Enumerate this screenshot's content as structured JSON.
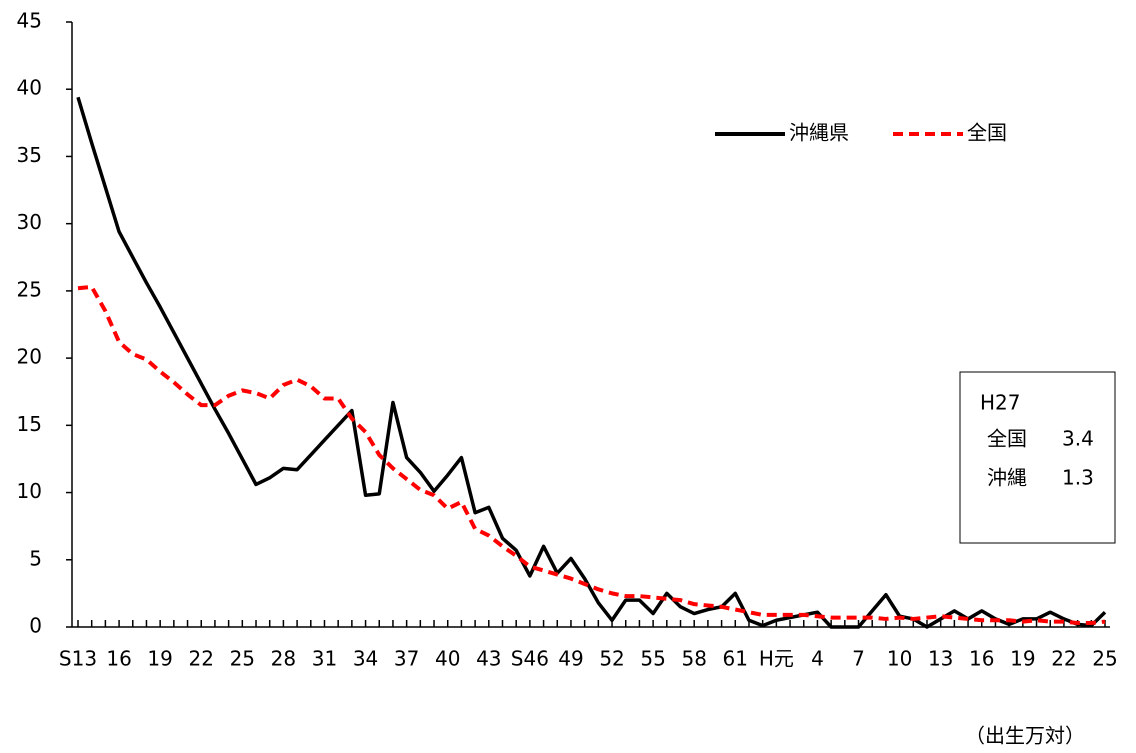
{
  "chart_data": {
    "type": "line",
    "categories": [
      "S13",
      null,
      null,
      "16",
      null,
      null,
      "19",
      null,
      null,
      "22",
      null,
      null,
      "25",
      null,
      null,
      "28",
      null,
      null,
      "31",
      null,
      null,
      "34",
      null,
      null,
      "37",
      null,
      null,
      "40",
      null,
      null,
      "43",
      null,
      null,
      "S46",
      null,
      null,
      "49",
      null,
      null,
      "52",
      null,
      null,
      "55",
      null,
      null,
      "58",
      null,
      null,
      "61",
      null,
      null,
      "H元",
      null,
      null,
      "4",
      null,
      null,
      "7",
      null,
      null,
      "10",
      null,
      null,
      "13",
      null,
      null,
      "16",
      null,
      null,
      "19",
      null,
      null,
      "22",
      null,
      null,
      "25"
    ],
    "series": [
      {
        "name": "沖縄県",
        "color": "#000000",
        "dash": false,
        "values": [
          39.4,
          36,
          32.7,
          29.4,
          27.5,
          25.6,
          23.8,
          21.9,
          20.0,
          18.1,
          16.2,
          14.4,
          12.5,
          10.6,
          11.1,
          11.8,
          11.7,
          12.8,
          13.9,
          15.0,
          16.1,
          9.8,
          9.9,
          16.7,
          12.6,
          11.5,
          10.1,
          11.3,
          12.6,
          8.5,
          8.9,
          6.6,
          5.7,
          3.8,
          6.0,
          4.0,
          5.1,
          3.6,
          1.8,
          0.5,
          2.0,
          2.0,
          1.0,
          2.5,
          1.5,
          1.0,
          1.3,
          1.5,
          2.5,
          0.5,
          0.1,
          0.5,
          0.7,
          0.9,
          1.1,
          0.0,
          0,
          0,
          1.2,
          2.4,
          0.8,
          0.6,
          0.0,
          0.6,
          1.2,
          0.6,
          1.2,
          0.6,
          0.2,
          0.6,
          0.6,
          1.1,
          0.6,
          0.2,
          0.1,
          1.1
        ]
      },
      {
        "name": "全国",
        "color": "#ff0000",
        "dash": true,
        "values": [
          25.2,
          25.3,
          23.5,
          21.2,
          20.3,
          19.9,
          19.0,
          18.2,
          17.3,
          16.5,
          16.5,
          17.2,
          17.6,
          17.4,
          17.0,
          18.0,
          18.4,
          17.9,
          17.0,
          17.0,
          15.5,
          14.5,
          12.8,
          11.8,
          11.0,
          10.2,
          9.8,
          8.8,
          9.3,
          7.3,
          6.8,
          6.0,
          5.3,
          4.5,
          4.2,
          3.9,
          3.6,
          3.2,
          2.8,
          2.5,
          2.3,
          2.3,
          2.2,
          2.1,
          2.0,
          1.7,
          1.6,
          1.5,
          1.3,
          1.1,
          0.9,
          0.9,
          0.9,
          0.9,
          0.8,
          0.7,
          0.7,
          0.7,
          0.7,
          0.6,
          0.7,
          0.6,
          0.7,
          0.8,
          0.7,
          0.6,
          0.5,
          0.5,
          0.5,
          0.4,
          0.5,
          0.4,
          0.4,
          0.3,
          0.3,
          0.4
        ]
      }
    ],
    "ylim": [
      0,
      45
    ],
    "yticks": [
      0,
      5,
      10,
      15,
      20,
      25,
      30,
      35,
      40,
      45
    ],
    "grid": false,
    "unit_note": "（出生万対）",
    "annotation": {
      "title": "H27",
      "rows": [
        [
          "全国",
          "3.4"
        ],
        [
          "沖縄",
          "1.3"
        ]
      ]
    }
  }
}
